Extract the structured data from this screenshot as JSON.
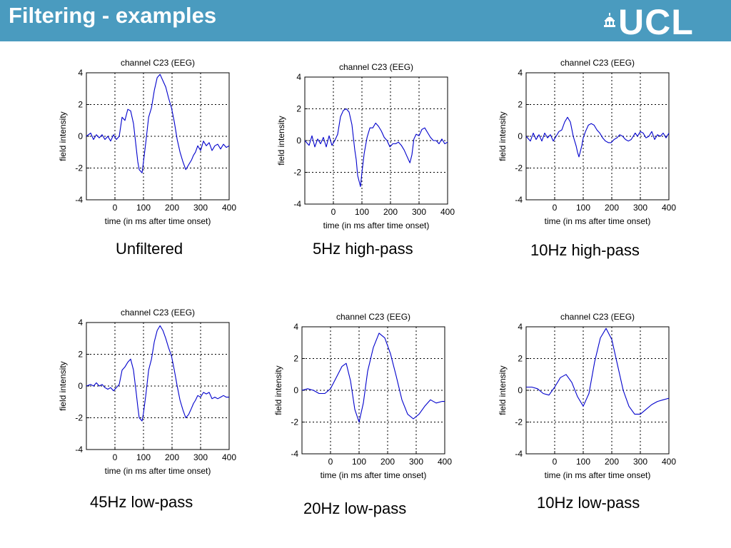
{
  "slide": {
    "title": "Filtering - examples",
    "logo_text": "UCL",
    "header_color": "#4a9bbf"
  },
  "chart_data": [
    {
      "type": "line",
      "caption": "Unfiltered",
      "title": "channel C23 (EEG)",
      "xlabel": "time (in ms after time onset)",
      "ylabel": "field intensity",
      "xticks": [
        0,
        100,
        200,
        300,
        400
      ],
      "yticks": [
        4,
        2,
        0,
        -2,
        -4
      ],
      "xlim": [
        -100,
        400
      ],
      "ylim": [
        -4,
        4
      ],
      "grid": true,
      "color": "#0000cc",
      "x": [
        -100,
        -85,
        -75,
        -65,
        -55,
        -45,
        -35,
        -25,
        -15,
        -5,
        5,
        15,
        25,
        35,
        45,
        55,
        65,
        75,
        80,
        85,
        95,
        100,
        108,
        118,
        128,
        138,
        148,
        158,
        168,
        178,
        188,
        198,
        208,
        218,
        228,
        238,
        248,
        258,
        268,
        275,
        282,
        290,
        300,
        310,
        320,
        330,
        340,
        350,
        360,
        370,
        380,
        390,
        400
      ],
      "y": [
        0.0,
        0.2,
        -0.2,
        0.1,
        -0.1,
        0.1,
        -0.2,
        0.0,
        -0.3,
        0.1,
        -0.2,
        0.0,
        1.2,
        1.0,
        1.7,
        1.6,
        0.8,
        -0.8,
        -1.6,
        -2.1,
        -2.3,
        -1.6,
        -0.4,
        1.2,
        1.8,
        2.9,
        3.7,
        3.9,
        3.5,
        3.1,
        2.4,
        1.8,
        0.9,
        -0.2,
        -1.0,
        -1.6,
        -2.1,
        -1.8,
        -1.5,
        -1.2,
        -1.0,
        -0.6,
        -0.9,
        -0.3,
        -0.6,
        -0.4,
        -0.9,
        -0.6,
        -0.5,
        -0.8,
        -0.5,
        -0.7,
        -0.6
      ]
    },
    {
      "type": "line",
      "caption": "5Hz high-pass",
      "title": "channel C23 (EEG)",
      "xlabel": "time (in ms after time onset)",
      "ylabel": "field intensity",
      "xticks": [
        0,
        100,
        200,
        300,
        400
      ],
      "yticks": [
        4,
        2,
        0,
        -2,
        -4
      ],
      "xlim": [
        -100,
        400
      ],
      "ylim": [
        -4,
        4
      ],
      "grid": true,
      "color": "#0000cc",
      "x": [
        -100,
        -85,
        -75,
        -65,
        -55,
        -45,
        -35,
        -25,
        -15,
        -5,
        5,
        15,
        25,
        35,
        45,
        55,
        65,
        75,
        80,
        85,
        95,
        100,
        108,
        118,
        128,
        138,
        148,
        158,
        168,
        178,
        188,
        198,
        208,
        218,
        228,
        238,
        248,
        258,
        268,
        275,
        282,
        290,
        300,
        310,
        320,
        330,
        340,
        350,
        360,
        370,
        380,
        390,
        400
      ],
      "y": [
        0.0,
        -0.3,
        0.3,
        -0.4,
        0.1,
        -0.2,
        0.2,
        -0.4,
        0.3,
        -0.3,
        0.0,
        0.4,
        1.5,
        1.9,
        2.0,
        1.8,
        1.0,
        -0.6,
        -1.2,
        -2.2,
        -2.9,
        -2.0,
        -0.8,
        0.2,
        0.8,
        0.8,
        1.1,
        0.9,
        0.6,
        0.2,
        0.0,
        -0.4,
        -0.2,
        -0.2,
        -0.1,
        -0.3,
        -0.6,
        -1.0,
        -1.4,
        -0.9,
        0.1,
        0.4,
        0.3,
        0.7,
        0.8,
        0.5,
        0.2,
        0.0,
        0.0,
        -0.2,
        0.1,
        -0.2,
        -0.1
      ]
    },
    {
      "type": "line",
      "caption": "10Hz high-pass",
      "title": "channel C23 (EEG)",
      "xlabel": "time (in ms after time onset)",
      "ylabel": "field intensity",
      "xticks": [
        0,
        100,
        200,
        300,
        400
      ],
      "yticks": [
        4,
        2,
        0,
        -2,
        -4
      ],
      "xlim": [
        -100,
        400
      ],
      "ylim": [
        -4,
        4
      ],
      "grid": true,
      "color": "#0000cc",
      "x": [
        -100,
        -85,
        -75,
        -65,
        -55,
        -45,
        -35,
        -25,
        -15,
        -5,
        5,
        15,
        25,
        35,
        45,
        55,
        65,
        75,
        80,
        85,
        95,
        100,
        108,
        118,
        128,
        138,
        148,
        158,
        168,
        178,
        188,
        198,
        208,
        218,
        228,
        238,
        248,
        258,
        268,
        275,
        282,
        290,
        300,
        310,
        320,
        330,
        340,
        350,
        360,
        370,
        380,
        390,
        400
      ],
      "y": [
        0.0,
        -0.3,
        0.2,
        -0.2,
        0.1,
        -0.3,
        0.2,
        -0.1,
        0.1,
        -0.3,
        0.0,
        0.3,
        0.4,
        0.9,
        1.2,
        0.9,
        0.0,
        -0.6,
        -1.0,
        -1.3,
        -0.6,
        -0.1,
        0.3,
        0.7,
        0.8,
        0.7,
        0.4,
        0.2,
        -0.1,
        -0.3,
        -0.4,
        -0.4,
        -0.2,
        -0.1,
        0.1,
        0.0,
        -0.2,
        -0.3,
        -0.2,
        0.0,
        0.2,
        0.0,
        0.3,
        0.2,
        -0.1,
        0.0,
        0.3,
        -0.2,
        0.1,
        0.0,
        0.2,
        -0.1,
        0.2
      ]
    },
    {
      "type": "line",
      "caption": "45Hz low-pass",
      "title": "channel C23 (EEG)",
      "xlabel": "time (in ms after time onset)",
      "ylabel": "field intensity",
      "xticks": [
        0,
        100,
        200,
        300,
        400
      ],
      "yticks": [
        4,
        2,
        0,
        -2,
        -4
      ],
      "xlim": [
        -100,
        400
      ],
      "ylim": [
        -4,
        4
      ],
      "grid": true,
      "color": "#0000cc",
      "x": [
        -100,
        -85,
        -75,
        -65,
        -55,
        -45,
        -35,
        -25,
        -15,
        -5,
        5,
        15,
        25,
        35,
        45,
        55,
        65,
        75,
        80,
        85,
        95,
        100,
        108,
        118,
        128,
        138,
        148,
        158,
        168,
        178,
        188,
        198,
        208,
        218,
        228,
        238,
        248,
        258,
        268,
        275,
        282,
        290,
        300,
        310,
        320,
        330,
        340,
        350,
        360,
        370,
        380,
        390,
        400
      ],
      "y": [
        0.0,
        0.1,
        0.0,
        0.2,
        0.0,
        0.1,
        -0.1,
        -0.2,
        -0.1,
        -0.3,
        -0.1,
        0.1,
        1.0,
        1.2,
        1.5,
        1.7,
        1.0,
        -0.5,
        -1.3,
        -2.0,
        -2.2,
        -1.7,
        -0.6,
        1.0,
        1.7,
        2.8,
        3.5,
        3.8,
        3.5,
        3.0,
        2.4,
        1.9,
        1.0,
        0.0,
        -0.9,
        -1.5,
        -2.0,
        -1.8,
        -1.4,
        -1.1,
        -0.9,
        -0.6,
        -0.7,
        -0.4,
        -0.5,
        -0.4,
        -0.8,
        -0.7,
        -0.8,
        -0.7,
        -0.6,
        -0.7,
        -0.7
      ]
    },
    {
      "type": "line",
      "caption": "20Hz low-pass",
      "title": "channel C23 (EEG)",
      "xlabel": "time (in ms after time onset)",
      "ylabel": "field intensity",
      "xticks": [
        0,
        100,
        200,
        300,
        400
      ],
      "yticks": [
        4,
        2,
        0,
        -2,
        -4
      ],
      "xlim": [
        -100,
        400
      ],
      "ylim": [
        -4,
        4
      ],
      "grid": true,
      "color": "#0000cc",
      "x": [
        -100,
        -80,
        -60,
        -40,
        -20,
        0,
        20,
        40,
        55,
        70,
        85,
        100,
        115,
        130,
        150,
        170,
        190,
        210,
        230,
        250,
        270,
        290,
        310,
        330,
        350,
        370,
        390,
        400
      ],
      "y": [
        0.0,
        0.1,
        0.0,
        -0.2,
        -0.2,
        0.1,
        0.8,
        1.5,
        1.7,
        0.6,
        -1.2,
        -2.0,
        -0.8,
        1.2,
        2.7,
        3.6,
        3.3,
        2.3,
        0.9,
        -0.6,
        -1.5,
        -1.8,
        -1.5,
        -1.0,
        -0.6,
        -0.8,
        -0.7,
        -0.7
      ]
    },
    {
      "type": "line",
      "caption": "10Hz low-pass",
      "title": "channel C23 (EEG)",
      "xlabel": "time (in ms after time onset)",
      "ylabel": "field intensity",
      "xticks": [
        0,
        100,
        200,
        300,
        400
      ],
      "yticks": [
        4,
        2,
        0,
        -2,
        -4
      ],
      "xlim": [
        -100,
        400
      ],
      "ylim": [
        -4,
        4
      ],
      "grid": true,
      "color": "#0000cc",
      "x": [
        -100,
        -80,
        -60,
        -40,
        -20,
        0,
        20,
        40,
        60,
        80,
        100,
        120,
        140,
        160,
        180,
        200,
        220,
        240,
        260,
        280,
        300,
        320,
        340,
        360,
        380,
        400
      ],
      "y": [
        0.2,
        0.2,
        0.1,
        -0.2,
        -0.3,
        0.2,
        0.8,
        1.0,
        0.5,
        -0.4,
        -1.0,
        -0.2,
        1.8,
        3.3,
        3.9,
        3.2,
        1.6,
        0.0,
        -1.0,
        -1.5,
        -1.5,
        -1.2,
        -0.9,
        -0.7,
        -0.6,
        -0.5
      ]
    }
  ]
}
